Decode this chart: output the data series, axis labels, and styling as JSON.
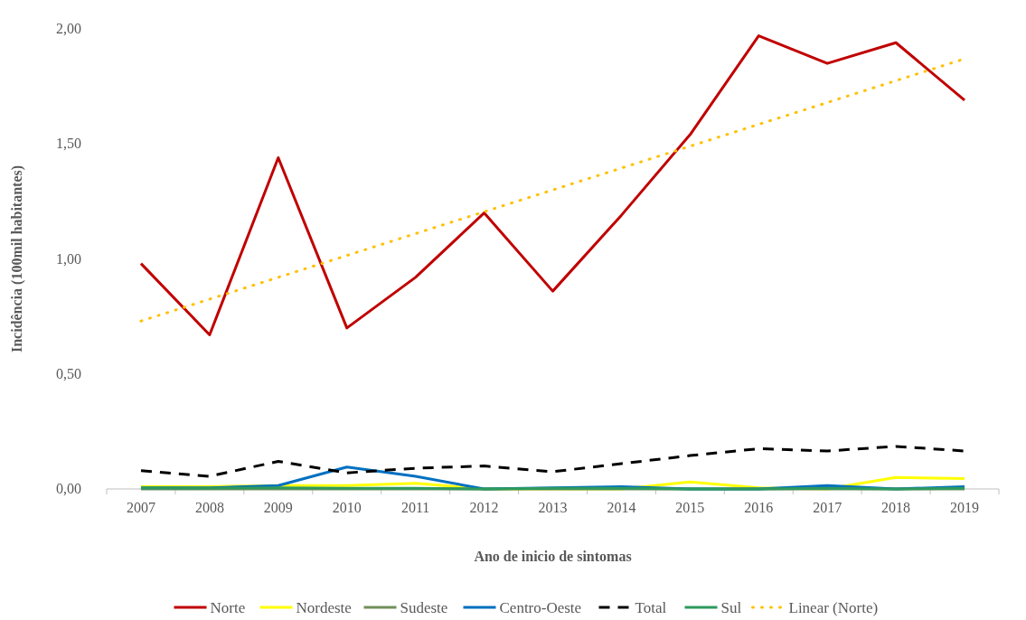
{
  "chart_data": {
    "type": "line",
    "xlabel": "Ano de inicio de sintomas",
    "ylabel": "Incidência (100mil habitantes)",
    "categories": [
      "2007",
      "2008",
      "2009",
      "2010",
      "2011",
      "2012",
      "2013",
      "2014",
      "2015",
      "2016",
      "2017",
      "2018",
      "2019"
    ],
    "ylim": [
      0,
      2
    ],
    "yticks": [
      {
        "value": 0,
        "label": "0,00"
      },
      {
        "value": 0.5,
        "label": "0,50"
      },
      {
        "value": 1,
        "label": "1,00"
      },
      {
        "value": 1.5,
        "label": "1,50"
      },
      {
        "value": 2,
        "label": "2,00"
      }
    ],
    "legend": "bottom",
    "grid": false,
    "series": [
      {
        "name": "Norte",
        "color": "#c00000",
        "values": [
          0.98,
          0.67,
          1.44,
          0.7,
          0.92,
          1.2,
          0.86,
          1.19,
          1.54,
          1.97,
          1.85,
          1.94,
          1.69
        ]
      },
      {
        "name": "Nordeste",
        "color": "#ffff00",
        "values": [
          0.01,
          0.01,
          0.015,
          0.015,
          0.025,
          0,
          0,
          0,
          0.03,
          0.005,
          0,
          0.05,
          0.045
        ]
      },
      {
        "name": "Sudeste",
        "color": "#70905a",
        "values": [
          0,
          0,
          0,
          0,
          0,
          0,
          0,
          0,
          0,
          0,
          0,
          0,
          0
        ]
      },
      {
        "name": "Centro-Oeste",
        "color": "#0070c0",
        "values": [
          0.005,
          0.005,
          0.015,
          0.095,
          0.055,
          0,
          0.005,
          0.01,
          0,
          0,
          0.015,
          0,
          0.01
        ]
      },
      {
        "name": "Total",
        "color": "#000000",
        "line_style": "dashed",
        "values": [
          0.08,
          0.055,
          0.12,
          0.07,
          0.09,
          0.1,
          0.075,
          0.11,
          0.145,
          0.175,
          0.165,
          0.185,
          0.165
        ]
      },
      {
        "name": "Sul",
        "color": "#2e9a5e",
        "values": [
          0.005,
          0.003,
          0.005,
          0.003,
          0.003,
          0,
          0.003,
          0.003,
          0,
          0,
          0.003,
          0,
          0.003
        ]
      },
      {
        "name": "Linear (Norte)",
        "color": "#ffc000",
        "line_style": "dotted",
        "values": [
          0.73,
          0.825,
          0.92,
          1.015,
          1.11,
          1.205,
          1.3,
          1.395,
          1.49,
          1.585,
          1.68,
          1.775,
          1.87
        ]
      }
    ]
  }
}
